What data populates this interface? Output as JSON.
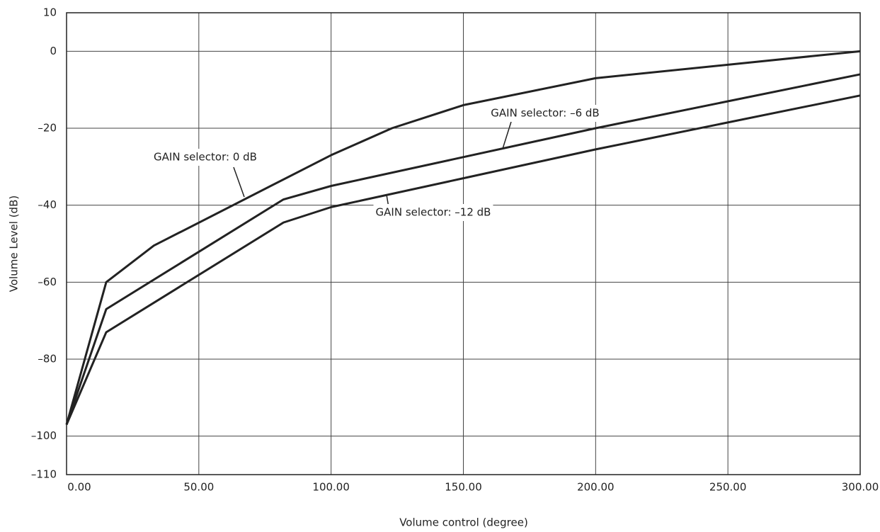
{
  "chart_data": {
    "type": "line",
    "x_label": "Volume control (degree)",
    "y_label": "Volume Level (dB)",
    "xlim": [
      0,
      300
    ],
    "xticks": [
      {
        "value": 0,
        "label": "0.00"
      },
      {
        "value": 50,
        "label": "50.00"
      },
      {
        "value": 100,
        "label": "100.00"
      },
      {
        "value": 150,
        "label": "150.00"
      },
      {
        "value": 200,
        "label": "200.00"
      },
      {
        "value": 250,
        "label": "250.00"
      },
      {
        "value": 300,
        "label": "300.00"
      }
    ],
    "ylim": [
      -110,
      10
    ],
    "yticks": [
      10,
      0,
      {
        "value": -20,
        "label": "–20"
      },
      {
        "value": -40,
        "label": "–40"
      },
      {
        "value": -60,
        "label": "–60"
      },
      {
        "value": -80,
        "label": "–80"
      },
      {
        "value": -100,
        "label": "–100"
      },
      {
        "value": -110,
        "label": "–110"
      }
    ],
    "grid": true,
    "series": [
      {
        "name": "GAIN selector: 0 dB",
        "color": "#222222",
        "x": [
          0,
          15,
          33,
          100,
          123,
          150,
          200,
          300
        ],
        "values": [
          -97,
          -60,
          -50.5,
          -27,
          -20,
          -14,
          -7,
          0
        ]
      },
      {
        "name": "GAIN selector: –6 dB",
        "color": "#222222",
        "x": [
          0,
          15,
          82,
          100,
          200,
          300
        ],
        "values": [
          -97,
          -67,
          -38.5,
          -35,
          -20,
          -6
        ]
      },
      {
        "name": "GAIN selector: –12 dB",
        "color": "#222222",
        "x": [
          0,
          15,
          82,
          100,
          150,
          200,
          300
        ],
        "values": [
          -97,
          -73,
          -44.5,
          -40.5,
          -33,
          -25.5,
          -11.5
        ]
      }
    ]
  }
}
